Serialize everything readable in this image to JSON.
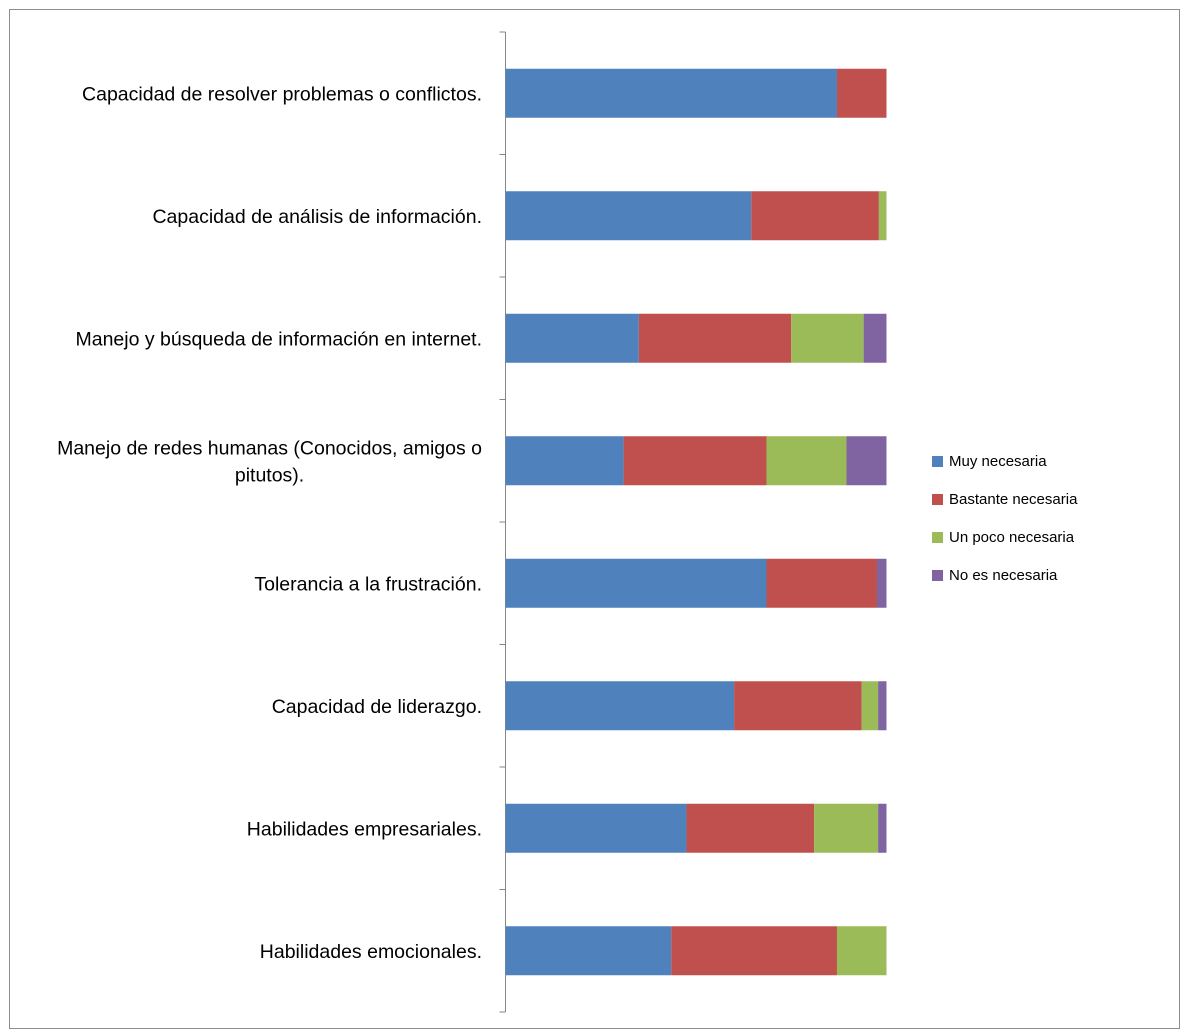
{
  "chart_data": {
    "type": "bar",
    "orientation": "horizontal",
    "stacked": "percent",
    "categories": [
      "Capacidad de resolver problemas o conflictos.",
      "Capacidad de análisis de información.",
      "Manejo y búsqueda  de información en internet.",
      "Manejo de redes humanas (Conocidos, amigos o pitutos).",
      "Tolerancia a la frustración.",
      "Capacidad de liderazgo.",
      "Habilidades empresariales.",
      "Habilidades emocionales."
    ],
    "series": [
      {
        "name": "Muy necesaria",
        "color": "#4F81BD",
        "values": [
          87,
          64.5,
          35,
          31,
          68.5,
          60,
          47.5,
          43.5
        ]
      },
      {
        "name": "Bastante necesaria",
        "color": "#C0504D",
        "values": [
          13,
          33.5,
          40,
          37.5,
          29,
          33.5,
          33.5,
          43.5
        ]
      },
      {
        "name": "Un poco necesaria",
        "color": "#9BBB59",
        "values": [
          0,
          2,
          19,
          21,
          0,
          4.3,
          16.8,
          13
        ]
      },
      {
        "name": "No es necesaria",
        "color": "#8064A2",
        "values": [
          0,
          0,
          6,
          10.5,
          2.5,
          2.2,
          2.2,
          0
        ]
      }
    ],
    "xlim": [
      0,
      100
    ],
    "grid": false,
    "legend_position": "right"
  }
}
